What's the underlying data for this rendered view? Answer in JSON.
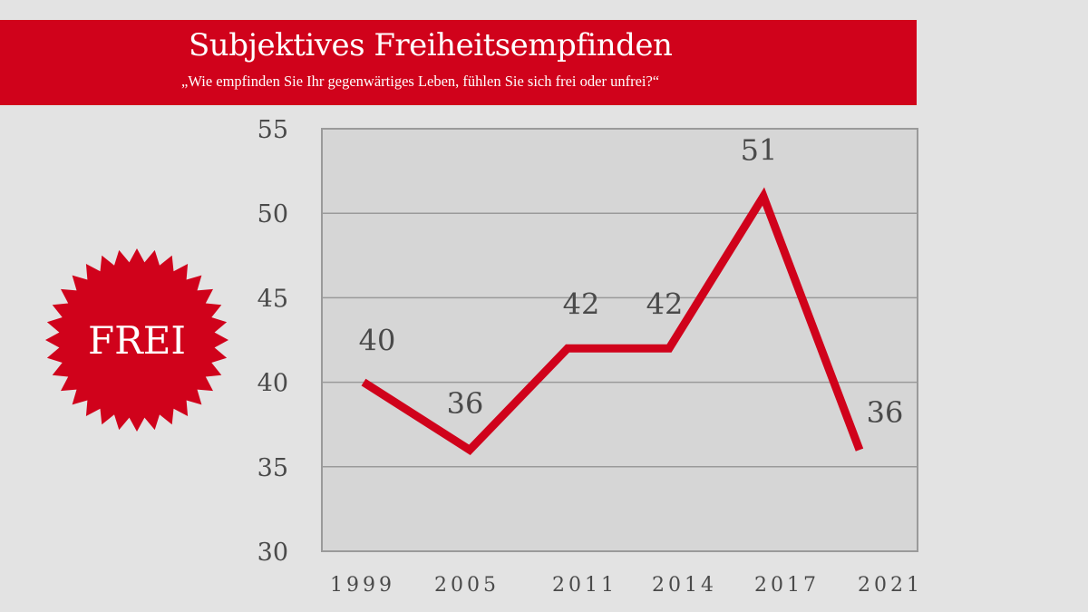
{
  "header": {
    "title": "Subjektives Freiheitsempfinden",
    "subtitle": "„Wie empfinden Sie Ihr gegenwärtiges Leben, fühlen Sie sich frei oder unfrei?“"
  },
  "badge": {
    "label": "FREI",
    "color": "#d0021b"
  },
  "colors": {
    "accent": "#d0021b",
    "background": "#e3e3e3",
    "plot_background": "#d6d6d6",
    "grid": "#9a9a9a",
    "text": "#4a4a4a"
  },
  "chart_data": {
    "type": "line",
    "title": "Subjektives Freiheitsempfinden",
    "subtitle": "„Wie empfinden Sie Ihr gegenwärtiges Leben, fühlen Sie sich frei oder unfrei?“",
    "xlabel": "",
    "ylabel": "",
    "categories": [
      "1999",
      "2005",
      "2011",
      "2014",
      "2017",
      "2021"
    ],
    "series": [
      {
        "name": "Frei",
        "values": [
          40,
          36,
          42,
          42,
          51,
          36
        ]
      }
    ],
    "data_labels": [
      "40",
      "36",
      "42",
      "42",
      "51",
      "36"
    ],
    "ylim": [
      30,
      55
    ],
    "yticks": [
      30,
      35,
      40,
      45,
      50,
      55
    ],
    "grid": true,
    "legend": "none"
  }
}
